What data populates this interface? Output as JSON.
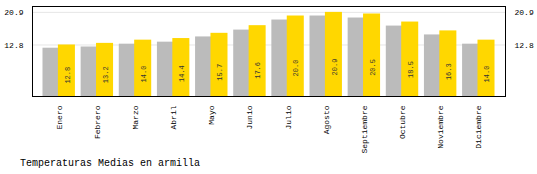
{
  "chart_data": {
    "type": "bar",
    "title": "Temperaturas Medias en armilla",
    "categories": [
      "Enero",
      "Febrero",
      "Marzo",
      "Abril",
      "Mayo",
      "Junio",
      "Julio",
      "Agosto",
      "Septiembre",
      "Octubre",
      "Noviembre",
      "Diciembre"
    ],
    "series": [
      {
        "color": "#BBBBBB",
        "values": [
          12.0,
          12.3,
          13.0,
          13.5,
          14.8,
          16.5,
          19.0,
          20.0,
          19.5,
          17.5,
          15.3,
          13.0
        ]
      },
      {
        "color": "#FFD700",
        "values": [
          12.8,
          13.2,
          14.0,
          14.4,
          15.7,
          17.6,
          20.0,
          20.9,
          20.5,
          18.5,
          16.3,
          14.0
        ],
        "value_labels": [
          "12.8",
          "13.2",
          "14.0",
          "14.4",
          "15.7",
          "17.6",
          "20.0",
          "20.9",
          "20.5",
          "18.5",
          "16.3",
          "14.0"
        ],
        "data_labels": true
      }
    ],
    "ylim": [
      0,
      22.363
    ],
    "yticks": [
      12.8,
      20.9
    ],
    "grid": true
  }
}
